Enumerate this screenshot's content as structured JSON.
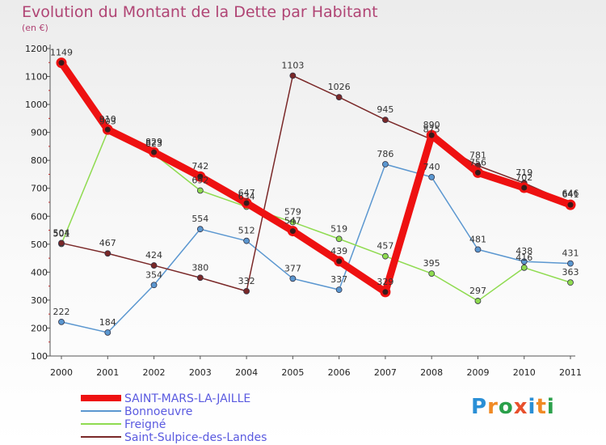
{
  "title": "Evolution du Montant de la Dette par Habitant",
  "unit": "(en €)",
  "brand": {
    "text": "Proxiti",
    "letter_colors": [
      "#2a8fd6",
      "#f08a24",
      "#2aa04a",
      "#e8502c",
      "#2a8fd6",
      "#f08a24",
      "#2aa04a"
    ]
  },
  "chart_data": {
    "type": "line",
    "title": "Evolution du Montant de la Dette par Habitant",
    "ylabel": "(en €)",
    "xlabel": "",
    "x": [
      "2000",
      "2001",
      "2002",
      "2003",
      "2004",
      "2005",
      "2006",
      "2007",
      "2008",
      "2009",
      "2010",
      "2011"
    ],
    "ylim": [
      100,
      1200
    ],
    "yticks": [
      100,
      200,
      300,
      400,
      500,
      600,
      700,
      800,
      900,
      1000,
      1100,
      1200
    ],
    "grid": false,
    "legend_position": "bottom-left",
    "series": [
      {
        "name": "SAINT-MARS-LA-JAILLE",
        "color": "#ee1111",
        "highlight": true,
        "values": [
          1149,
          910,
          829,
          742,
          647,
          547,
          439,
          329,
          890,
          756,
          702,
          641
        ]
      },
      {
        "name": "Bonnoeuvre",
        "color": "#5b97d0",
        "values": [
          222,
          184,
          354,
          554,
          512,
          377,
          337,
          786,
          740,
          481,
          438,
          431
        ]
      },
      {
        "name": "Freigné",
        "color": "#8fdb50",
        "values": [
          501,
          903,
          823,
          692,
          634,
          579,
          519,
          457,
          395,
          297,
          416,
          363
        ]
      },
      {
        "name": "Saint-Sulpice-des-Landes",
        "color": "#7a2828",
        "values": [
          504,
          467,
          424,
          380,
          332,
          1103,
          1026,
          945,
          875,
          781,
          719,
          646
        ]
      }
    ]
  }
}
